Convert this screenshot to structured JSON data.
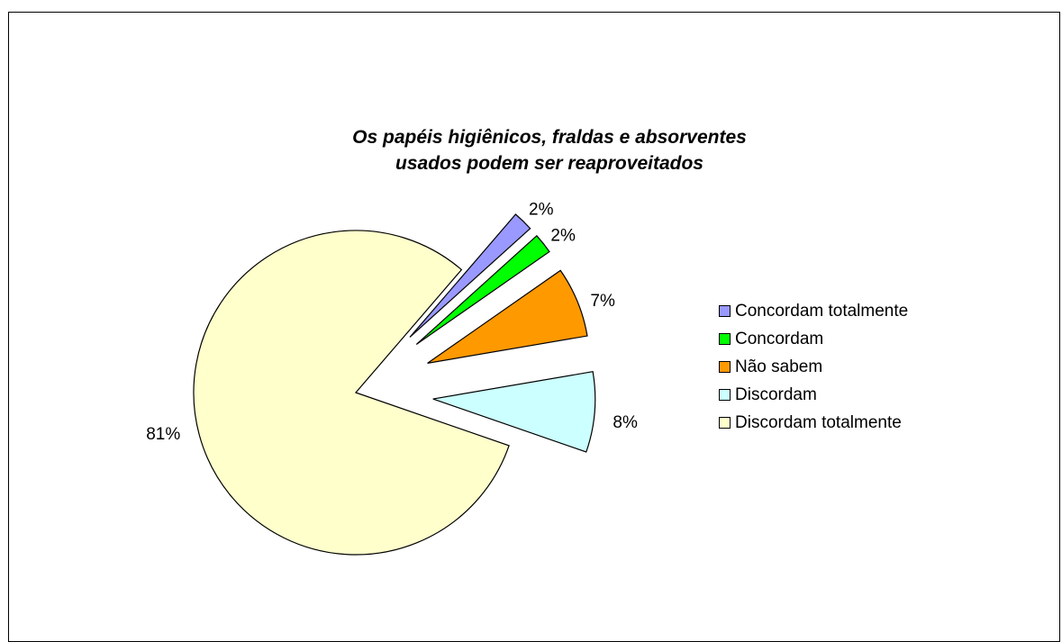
{
  "chart_data": {
    "type": "pie",
    "title_lines": [
      "Os papéis higiênicos, fraldas e absorventes",
      "usados podem ser reaproveitados"
    ],
    "slices": [
      {
        "name": "Concordam totalmente",
        "value": 2,
        "label": "2%",
        "color": "#9999ff"
      },
      {
        "name": "Concordam",
        "value": 2,
        "label": "2%",
        "color": "#00ff00"
      },
      {
        "name": "Não sabem",
        "value": 7,
        "label": "7%",
        "color": "#ff9900"
      },
      {
        "name": "Discordam",
        "value": 8,
        "label": "8%",
        "color": "#ccffff"
      },
      {
        "name": "Discordam totalmente",
        "value": 81,
        "label": "81%",
        "color": "#ffffcc"
      }
    ],
    "legend_position": "right"
  }
}
